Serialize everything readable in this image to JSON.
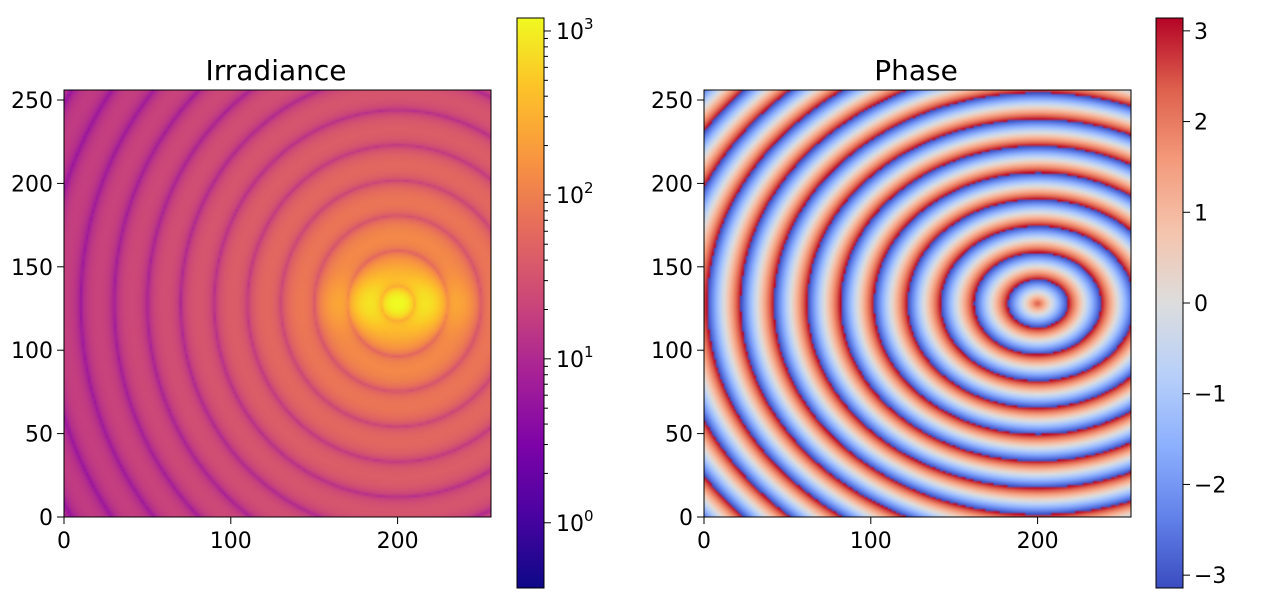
{
  "chart_data": [
    {
      "type": "heatmap",
      "title": "Irradiance",
      "xlabel": "",
      "ylabel": "",
      "xlim": [
        0,
        256
      ],
      "ylim": [
        0,
        256
      ],
      "xticks": [
        "0",
        "100",
        "200"
      ],
      "xtick_values": [
        0,
        100,
        200
      ],
      "yticks": [
        "0",
        "50",
        "100",
        "150",
        "200",
        "250"
      ],
      "ytick_values": [
        0,
        50,
        100,
        150,
        200,
        250
      ],
      "colormap": "plasma",
      "color_scale": "log",
      "colorbar_range": [
        0.4,
        1200
      ],
      "colorbar_ticks": [
        {
          "base": "10",
          "exp": "0",
          "value": 1
        },
        {
          "base": "10",
          "exp": "1",
          "value": 10
        },
        {
          "base": "10",
          "exp": "2",
          "value": 100
        },
        {
          "base": "10",
          "exp": "3",
          "value": 1000
        }
      ],
      "field": {
        "source_center": [
          200,
          128
        ],
        "peak_value": 1000,
        "peak_extent": [
          18,
          9
        ],
        "falloff_power": 1.6,
        "background_value": 5,
        "ring_wavelength": 20
      },
      "grid": false,
      "legend": "none"
    },
    {
      "type": "heatmap",
      "title": "Phase",
      "xlabel": "",
      "ylabel": "",
      "xlim": [
        0,
        256
      ],
      "ylim": [
        0,
        256
      ],
      "xticks": [
        "0",
        "100",
        "200"
      ],
      "xtick_values": [
        0,
        100,
        200
      ],
      "yticks": [
        "0",
        "50",
        "100",
        "150",
        "200",
        "250"
      ],
      "ytick_values": [
        0,
        50,
        100,
        150,
        200,
        250
      ],
      "colormap": "coolwarm",
      "color_scale": "linear",
      "colorbar_range": [
        -3.14159,
        3.14159
      ],
      "colorbar_ticks": [
        {
          "label": "3",
          "value": 3
        },
        {
          "label": "2",
          "value": 2
        },
        {
          "label": "1",
          "value": 1
        },
        {
          "label": "0",
          "value": 0
        },
        {
          "label": "−1",
          "value": -1
        },
        {
          "label": "−2",
          "value": -2
        },
        {
          "label": "−3",
          "value": -3
        }
      ],
      "field": {
        "source_center": [
          200,
          128
        ],
        "ring_wavelength": 20,
        "center_phase": 2.5,
        "ellipse_ratio_y": 0.8
      },
      "grid": false,
      "legend": "none"
    }
  ]
}
